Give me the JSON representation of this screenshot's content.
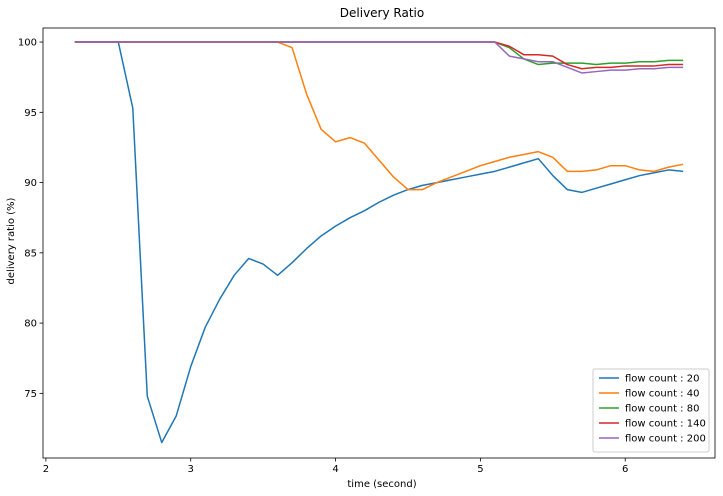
{
  "chart_data": {
    "type": "line",
    "title": "Delivery Ratio",
    "xlabel": "time (second)",
    "ylabel": "delivery ratio (%)",
    "xlim": [
      1.98,
      6.62
    ],
    "ylim": [
      70.4,
      101.0
    ],
    "xticks": [
      2,
      3,
      4,
      5,
      6
    ],
    "yticks": [
      75,
      80,
      85,
      90,
      95,
      100
    ],
    "grid": false,
    "legend_position": "lower right",
    "x": [
      2.2,
      2.3,
      2.4,
      2.5,
      2.6,
      2.7,
      2.8,
      2.9,
      3.0,
      3.1,
      3.2,
      3.3,
      3.4,
      3.5,
      3.6,
      3.7,
      3.8,
      3.9,
      4.0,
      4.1,
      4.2,
      4.3,
      4.4,
      4.5,
      4.6,
      4.7,
      4.8,
      4.9,
      5.0,
      5.1,
      5.2,
      5.3,
      5.4,
      5.5,
      5.6,
      5.7,
      5.8,
      5.9,
      6.0,
      6.1,
      6.2,
      6.3,
      6.4
    ],
    "series": [
      {
        "name": "flow count : 20",
        "color": "#1f77b4",
        "values": [
          100.0,
          100.0,
          100.0,
          100.0,
          95.3,
          74.8,
          71.5,
          73.4,
          76.9,
          79.7,
          81.7,
          83.4,
          84.6,
          84.2,
          83.4,
          84.3,
          85.3,
          86.2,
          86.9,
          87.5,
          88.0,
          88.6,
          89.1,
          89.5,
          89.8,
          90.0,
          90.2,
          90.4,
          90.6,
          90.8,
          91.1,
          91.4,
          91.7,
          90.5,
          89.5,
          89.3,
          89.6,
          89.9,
          90.2,
          90.5,
          90.7,
          90.9,
          90.8
        ]
      },
      {
        "name": "flow count : 40",
        "color": "#ff7f0e",
        "values": [
          100.0,
          100.0,
          100.0,
          100.0,
          100.0,
          100.0,
          100.0,
          100.0,
          100.0,
          100.0,
          100.0,
          100.0,
          100.0,
          100.0,
          100.0,
          99.6,
          96.3,
          93.8,
          92.9,
          93.2,
          92.8,
          91.6,
          90.4,
          89.5,
          89.5,
          90.0,
          90.4,
          90.8,
          91.2,
          91.5,
          91.8,
          92.0,
          92.2,
          91.8,
          90.8,
          90.8,
          90.9,
          91.2,
          91.2,
          90.9,
          90.8,
          91.1,
          91.3
        ]
      },
      {
        "name": "flow count : 80",
        "color": "#2ca02c",
        "values": [
          100.0,
          100.0,
          100.0,
          100.0,
          100.0,
          100.0,
          100.0,
          100.0,
          100.0,
          100.0,
          100.0,
          100.0,
          100.0,
          100.0,
          100.0,
          100.0,
          100.0,
          100.0,
          100.0,
          100.0,
          100.0,
          100.0,
          100.0,
          100.0,
          100.0,
          100.0,
          100.0,
          100.0,
          100.0,
          100.0,
          99.6,
          98.8,
          98.4,
          98.5,
          98.5,
          98.5,
          98.4,
          98.5,
          98.5,
          98.6,
          98.6,
          98.7,
          98.7
        ]
      },
      {
        "name": "flow count : 140",
        "color": "#d62728",
        "values": [
          100.0,
          100.0,
          100.0,
          100.0,
          100.0,
          100.0,
          100.0,
          100.0,
          100.0,
          100.0,
          100.0,
          100.0,
          100.0,
          100.0,
          100.0,
          100.0,
          100.0,
          100.0,
          100.0,
          100.0,
          100.0,
          100.0,
          100.0,
          100.0,
          100.0,
          100.0,
          100.0,
          100.0,
          100.0,
          100.0,
          99.7,
          99.1,
          99.1,
          99.0,
          98.4,
          98.1,
          98.2,
          98.2,
          98.3,
          98.3,
          98.3,
          98.4,
          98.4
        ]
      },
      {
        "name": "flow count : 200",
        "color": "#9467bd",
        "values": [
          100.0,
          100.0,
          100.0,
          100.0,
          100.0,
          100.0,
          100.0,
          100.0,
          100.0,
          100.0,
          100.0,
          100.0,
          100.0,
          100.0,
          100.0,
          100.0,
          100.0,
          100.0,
          100.0,
          100.0,
          100.0,
          100.0,
          100.0,
          100.0,
          100.0,
          100.0,
          100.0,
          100.0,
          100.0,
          100.0,
          99.0,
          98.8,
          98.6,
          98.6,
          98.2,
          97.8,
          97.9,
          98.0,
          98.0,
          98.1,
          98.1,
          98.2,
          98.2
        ]
      }
    ]
  }
}
